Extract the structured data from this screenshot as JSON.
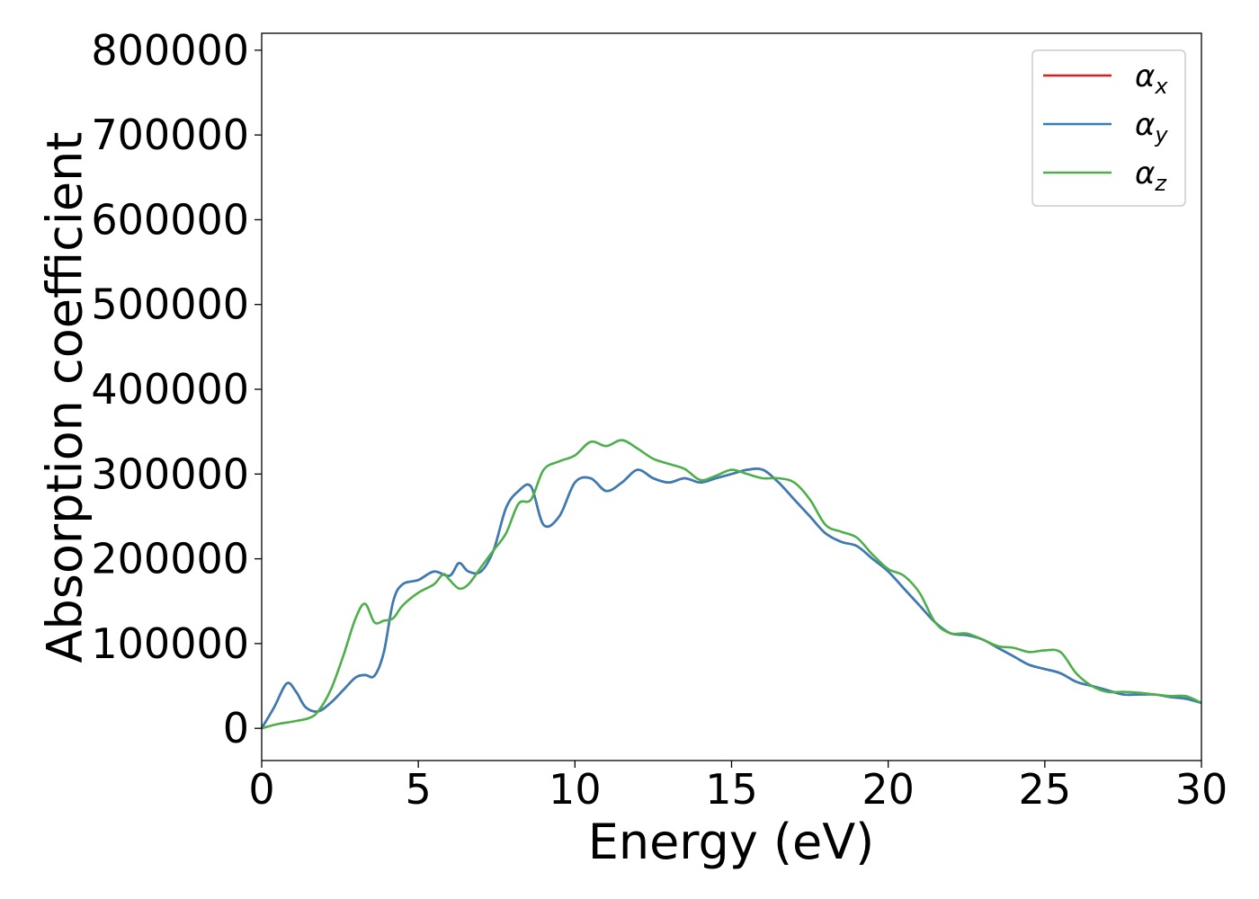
{
  "chart_data": {
    "type": "line",
    "title": "",
    "xlabel": "Energy (eV)",
    "ylabel": "Absorption coefficient",
    "xlim": [
      0,
      30
    ],
    "ylim": [
      -38000,
      820000
    ],
    "xticks": [
      0,
      5,
      10,
      15,
      20,
      25,
      30
    ],
    "yticks": [
      0,
      100000,
      200000,
      300000,
      400000,
      500000,
      600000,
      700000,
      800000
    ],
    "grid": false,
    "legend_position": "top-right",
    "series": [
      {
        "name": "α",
        "subscript": "x",
        "color": "#e41a1c",
        "x": [
          0,
          0.4,
          0.8,
          1.1,
          1.4,
          1.8,
          2.2,
          2.6,
          3.0,
          3.3,
          3.6,
          3.9,
          4.2,
          4.5,
          5.0,
          5.5,
          6.0,
          6.3,
          6.6,
          7.0,
          7.4,
          7.8,
          8.2,
          8.6,
          9.0,
          9.5,
          10.0,
          10.5,
          11.0,
          11.5,
          12.0,
          12.5,
          13.0,
          13.5,
          14.0,
          14.5,
          15.0,
          15.5,
          16.0,
          16.5,
          17.0,
          17.5,
          18.0,
          18.5,
          19.0,
          19.5,
          20.0,
          20.5,
          21.0,
          21.5,
          22.0,
          22.5,
          23.0,
          23.5,
          24.0,
          24.5,
          25.0,
          25.5,
          26.0,
          26.5,
          27.0,
          27.5,
          28.0,
          28.5,
          29.0,
          29.5,
          30.0
        ],
        "values": [
          0,
          25000,
          53000,
          43000,
          25000,
          20000,
          30000,
          45000,
          60000,
          63000,
          62000,
          90000,
          150000,
          170000,
          175000,
          185000,
          180000,
          195000,
          185000,
          185000,
          210000,
          260000,
          280000,
          285000,
          240000,
          250000,
          290000,
          295000,
          280000,
          290000,
          305000,
          295000,
          290000,
          295000,
          290000,
          295000,
          300000,
          305000,
          305000,
          290000,
          270000,
          250000,
          230000,
          220000,
          215000,
          200000,
          185000,
          165000,
          145000,
          125000,
          112000,
          110000,
          105000,
          95000,
          85000,
          75000,
          70000,
          65000,
          55000,
          50000,
          45000,
          40000,
          40000,
          40000,
          37000,
          35000,
          30000
        ]
      },
      {
        "name": "α",
        "subscript": "y",
        "color": "#377eb8",
        "x": [
          0,
          0.4,
          0.8,
          1.1,
          1.4,
          1.8,
          2.2,
          2.6,
          3.0,
          3.3,
          3.6,
          3.9,
          4.2,
          4.5,
          5.0,
          5.5,
          6.0,
          6.3,
          6.6,
          7.0,
          7.4,
          7.8,
          8.2,
          8.6,
          9.0,
          9.5,
          10.0,
          10.5,
          11.0,
          11.5,
          12.0,
          12.5,
          13.0,
          13.5,
          14.0,
          14.5,
          15.0,
          15.5,
          16.0,
          16.5,
          17.0,
          17.5,
          18.0,
          18.5,
          19.0,
          19.5,
          20.0,
          20.5,
          21.0,
          21.5,
          22.0,
          22.5,
          23.0,
          23.5,
          24.0,
          24.5,
          25.0,
          25.5,
          26.0,
          26.5,
          27.0,
          27.5,
          28.0,
          28.5,
          29.0,
          29.5,
          30.0
        ],
        "values": [
          0,
          25000,
          53000,
          43000,
          25000,
          20000,
          30000,
          45000,
          60000,
          63000,
          62000,
          90000,
          150000,
          170000,
          175000,
          185000,
          180000,
          195000,
          185000,
          185000,
          210000,
          260000,
          280000,
          285000,
          240000,
          250000,
          290000,
          295000,
          280000,
          290000,
          305000,
          295000,
          290000,
          295000,
          290000,
          295000,
          300000,
          305000,
          305000,
          290000,
          270000,
          250000,
          230000,
          220000,
          215000,
          200000,
          185000,
          165000,
          145000,
          125000,
          112000,
          110000,
          105000,
          95000,
          85000,
          75000,
          70000,
          65000,
          55000,
          50000,
          45000,
          40000,
          40000,
          40000,
          37000,
          35000,
          30000
        ]
      },
      {
        "name": "α",
        "subscript": "z",
        "color": "#4daf4a",
        "x": [
          0,
          0.5,
          1.0,
          1.5,
          1.8,
          2.2,
          2.6,
          3.0,
          3.3,
          3.6,
          3.9,
          4.2,
          4.5,
          5.0,
          5.5,
          5.8,
          6.0,
          6.3,
          6.6,
          7.0,
          7.4,
          7.8,
          8.2,
          8.6,
          9.0,
          9.5,
          10.0,
          10.5,
          11.0,
          11.5,
          12.0,
          12.5,
          13.0,
          13.5,
          14.0,
          14.5,
          15.0,
          15.5,
          16.0,
          16.5,
          17.0,
          17.5,
          18.0,
          18.5,
          19.0,
          19.5,
          20.0,
          20.5,
          21.0,
          21.5,
          22.0,
          22.5,
          23.0,
          23.5,
          24.0,
          24.5,
          25.0,
          25.5,
          26.0,
          26.5,
          27.0,
          27.5,
          28.0,
          28.5,
          29.0,
          29.5,
          30.0
        ],
        "values": [
          0,
          5000,
          8000,
          12000,
          20000,
          45000,
          85000,
          130000,
          147000,
          125000,
          127000,
          130000,
          145000,
          160000,
          170000,
          182000,
          175000,
          165000,
          170000,
          190000,
          210000,
          230000,
          265000,
          270000,
          305000,
          315000,
          322000,
          338000,
          333000,
          340000,
          330000,
          318000,
          312000,
          306000,
          293000,
          298000,
          305000,
          300000,
          295000,
          295000,
          290000,
          270000,
          240000,
          232000,
          225000,
          205000,
          188000,
          180000,
          160000,
          125000,
          112000,
          112000,
          105000,
          97000,
          95000,
          90000,
          92000,
          90000,
          65000,
          50000,
          43000,
          43000,
          42000,
          40000,
          38000,
          38000,
          30000
        ]
      }
    ]
  }
}
